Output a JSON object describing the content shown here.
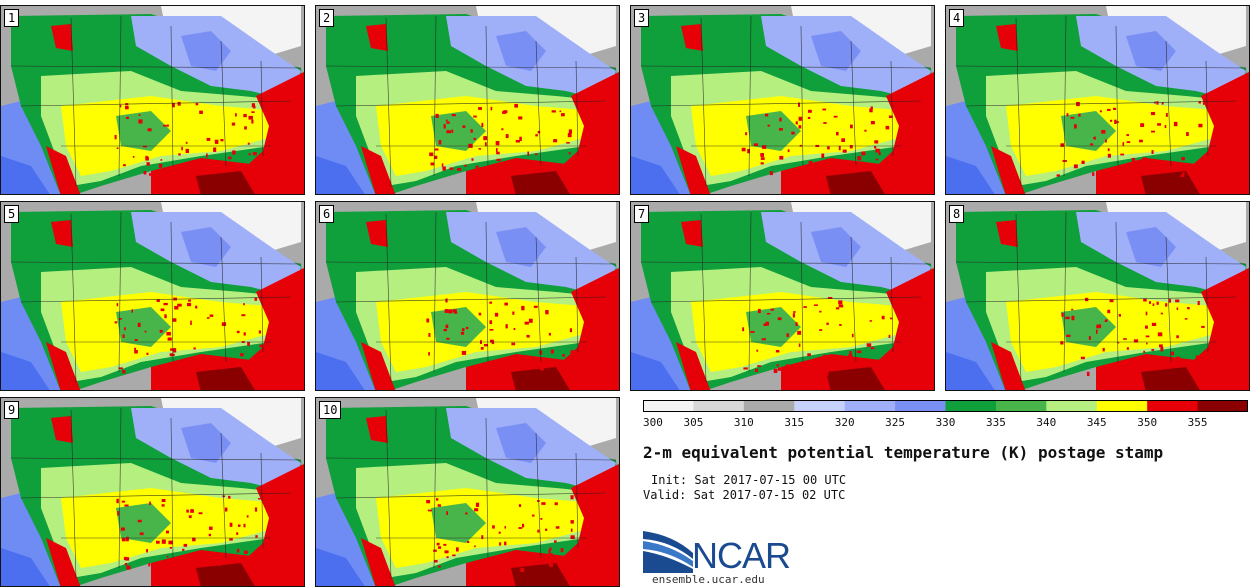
{
  "panels": [
    "1",
    "2",
    "3",
    "4",
    "5",
    "6",
    "7",
    "8",
    "9",
    "10"
  ],
  "colorbar": {
    "ticks": [
      "300",
      "305",
      "310",
      "315",
      "320",
      "325",
      "330",
      "335",
      "340",
      "345",
      "350",
      "355"
    ],
    "colors": [
      "#f4f4f4",
      "#d8d8d8",
      "#aaaaaa",
      "#c6d2fb",
      "#9fb0f8",
      "#7a8ff4",
      "#0f9f3b",
      "#48b54a",
      "#b5ef80",
      "#ffff00",
      "#e60008",
      "#8a0000"
    ]
  },
  "palette": {
    "ocean_pacific": "#6f8cf5",
    "ocean_atlantic": "#e60008",
    "water_lakes": "#7a8ff4",
    "land_green": "#0f9f3b",
    "land_mid_green": "#48b54a",
    "land_light_green": "#b5ef80",
    "land_yellow": "#ffff00",
    "land_red": "#e60008",
    "land_darkred": "#8a0000",
    "canada_gray": "#aaaaaa",
    "canada_white": "#f4f4f4",
    "canada_blue": "#9fb0f8"
  },
  "title": "2-m equivalent potential temperature (K) postage stamp",
  "init": "Init: Sat 2017-07-15 00 UTC",
  "valid": "Valid: Sat 2017-07-15 02 UTC",
  "logo": {
    "text": "NCAR",
    "url": "ensemble.ucar.edu"
  }
}
